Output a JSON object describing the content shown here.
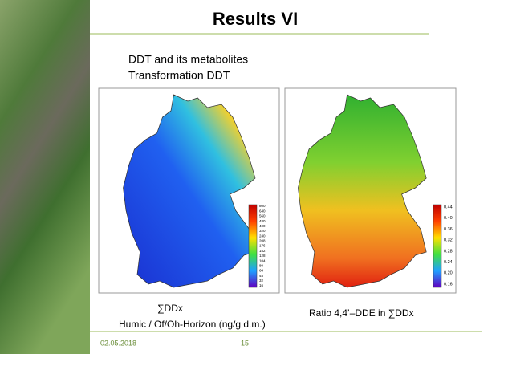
{
  "header": {
    "title": "Results VI"
  },
  "subtitle": [
    "DDT and its metabolites",
    "Transformation DDT"
  ],
  "maps": [
    {
      "legend": [
        "800",
        "640",
        "560",
        "480",
        "400",
        "320",
        "240",
        "208",
        "176",
        "152",
        "128",
        "104",
        "80",
        "64",
        "48",
        "32",
        "16"
      ],
      "caption": [
        "∑DDx",
        "Humic / Of/Oh-Horizon (ng/g d.m.)"
      ]
    },
    {
      "legend": [
        "0.44",
        "0.40",
        "0.36",
        "0.32",
        "0.28",
        "0.24",
        "0.20",
        "0.16"
      ],
      "caption": [
        "Ratio 4,4’–DDE in ∑DDx"
      ]
    }
  ],
  "footer": {
    "date": "02.05.2018",
    "page": "15"
  }
}
